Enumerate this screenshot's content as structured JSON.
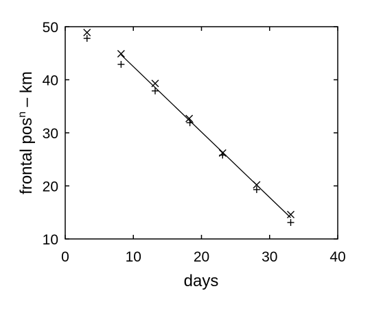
{
  "chart_data": {
    "type": "scatter",
    "xlabel": "days",
    "ylabel_main": "frontal pos",
    "ylabel_sup": "n",
    "ylabel_tail": " – km",
    "xlim": [
      0,
      40
    ],
    "ylim": [
      10,
      50
    ],
    "xticks": [
      0,
      10,
      20,
      30,
      40
    ],
    "yticks": [
      10,
      20,
      30,
      40,
      50
    ],
    "grid": false,
    "series": [
      {
        "marker": "cross-x",
        "x": [
          3.2,
          8.2,
          13.2,
          18.2,
          23.1,
          28.1,
          33.1
        ],
        "y": [
          48.9,
          44.9,
          39.3,
          32.7,
          26.2,
          20.2,
          14.6
        ]
      },
      {
        "marker": "plus",
        "x": [
          3.2,
          8.2,
          13.2,
          18.3,
          23.1,
          28.1,
          33.1
        ],
        "y": [
          47.8,
          42.9,
          37.9,
          31.9,
          25.8,
          19.3,
          13.1
        ]
      }
    ],
    "fit_line": {
      "x": [
        8.2,
        33.1
      ],
      "y": [
        44.7,
        14.0
      ]
    }
  }
}
